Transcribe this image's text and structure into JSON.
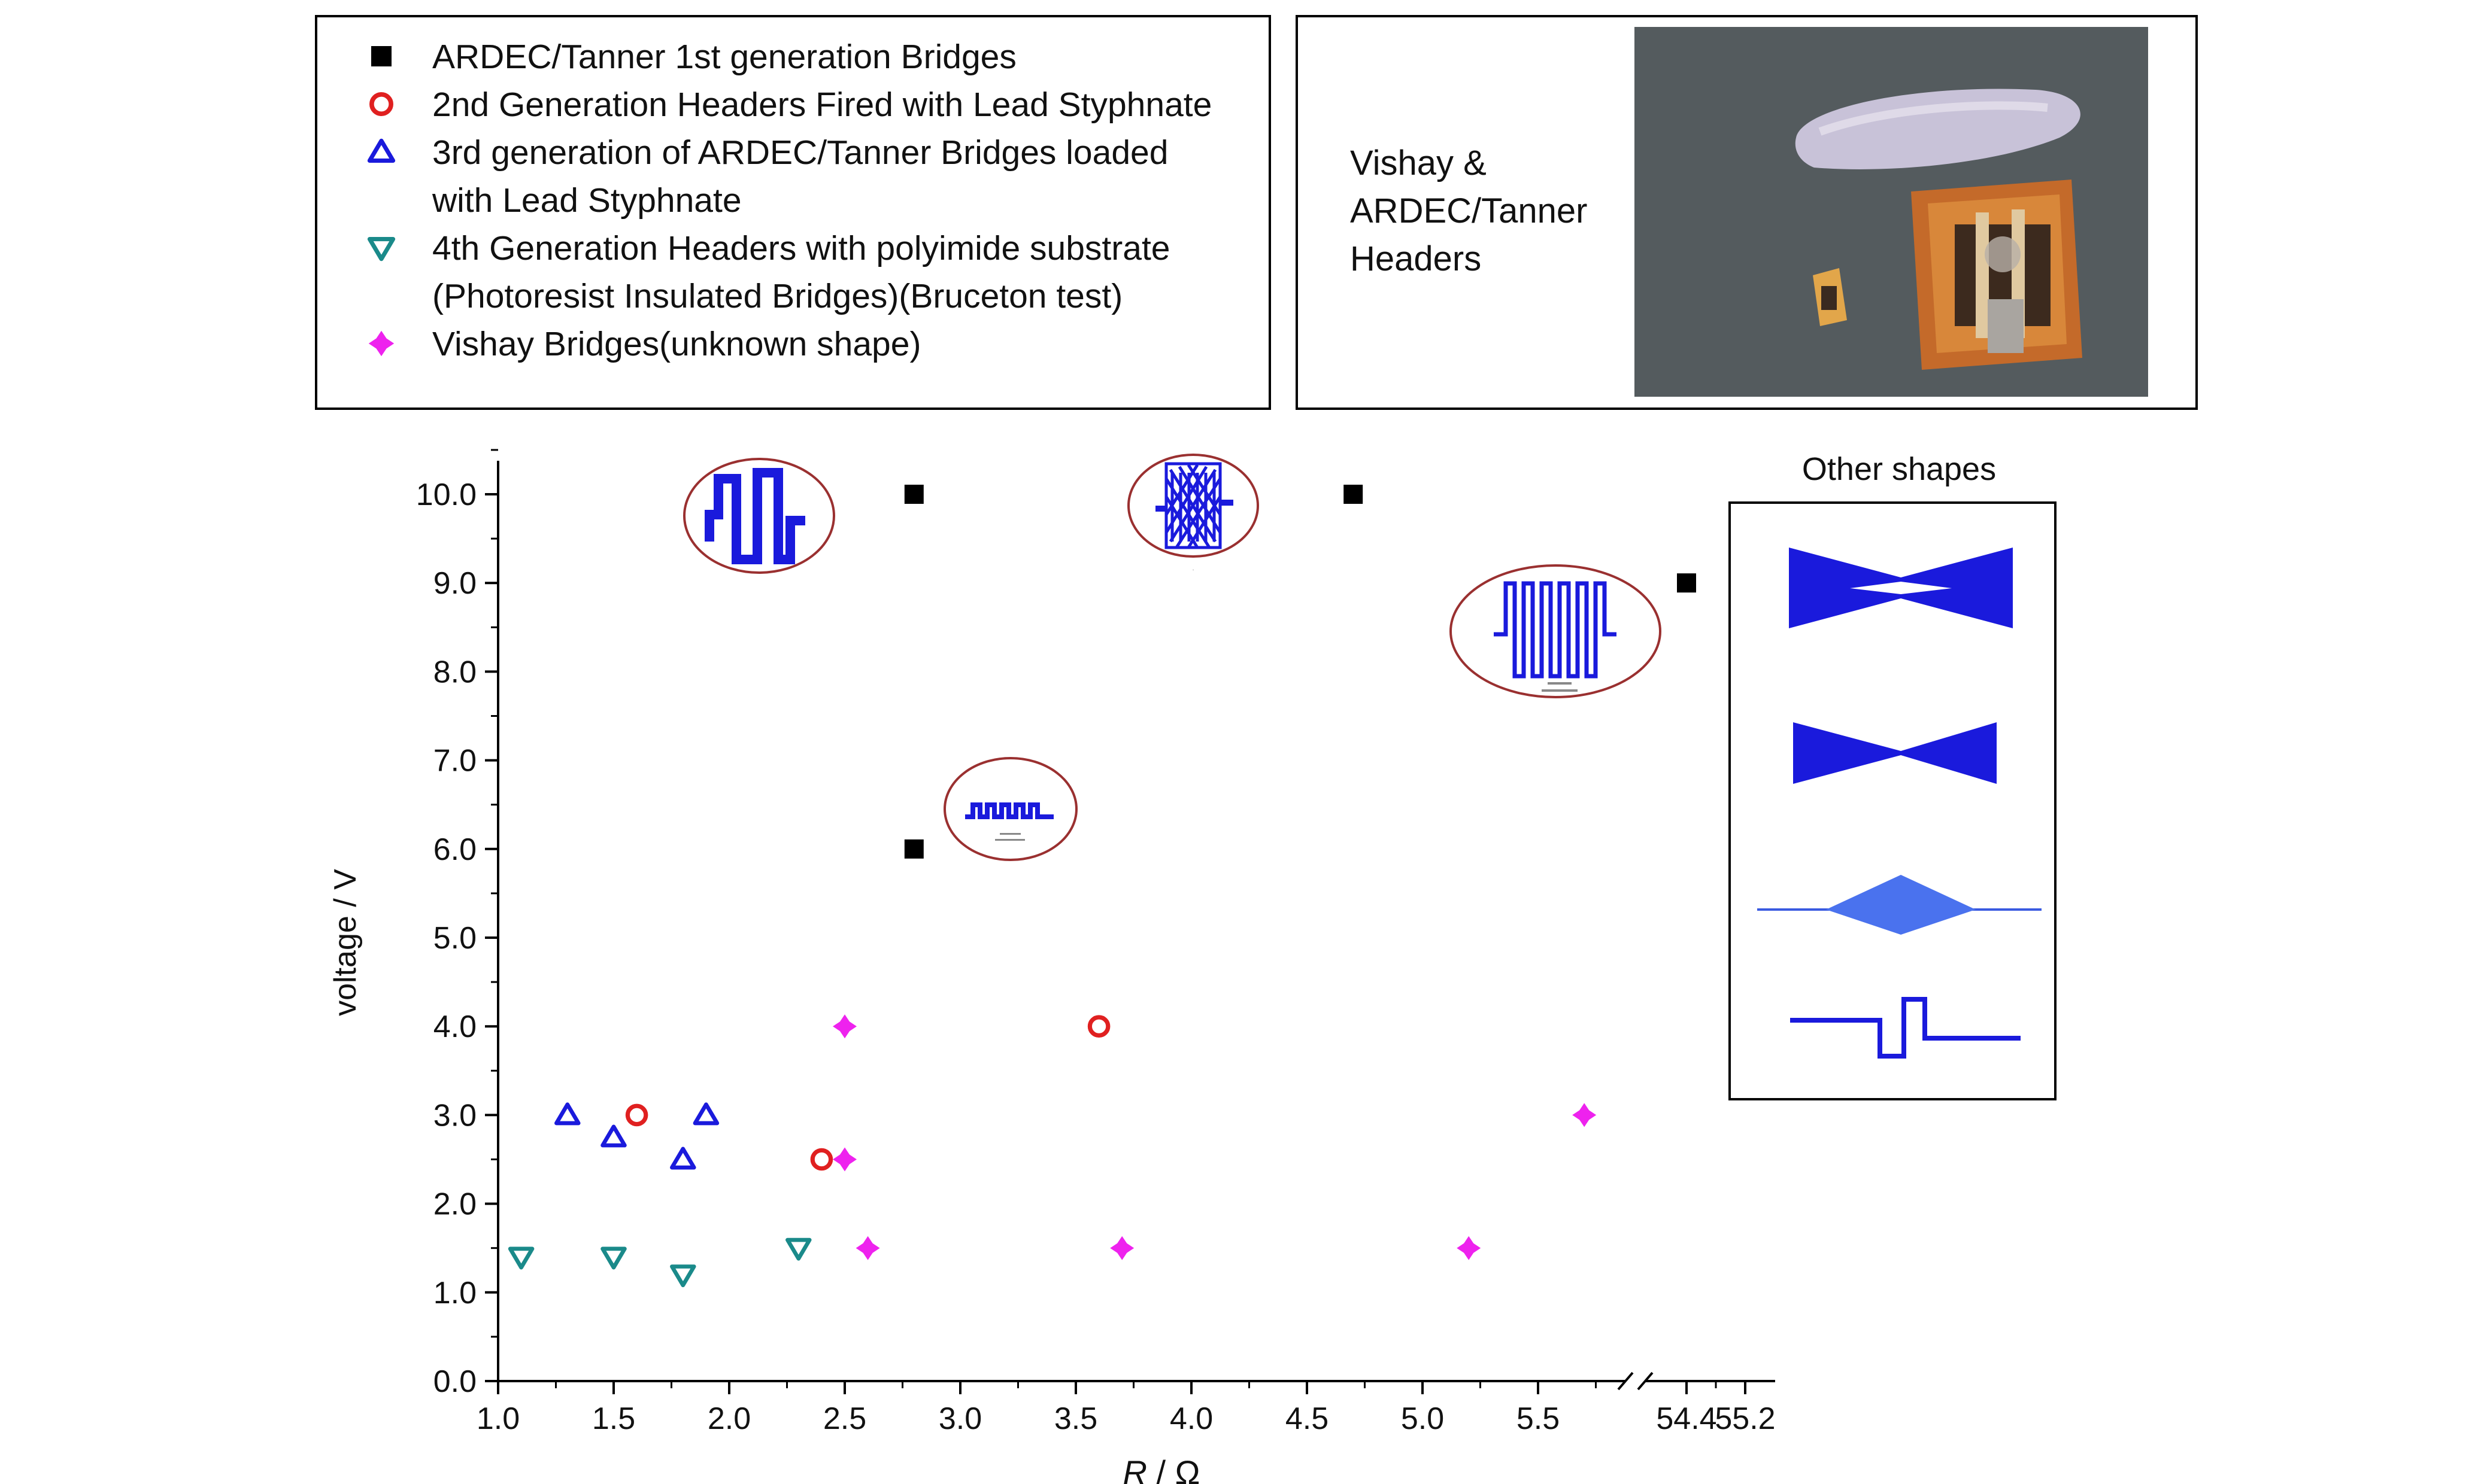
{
  "legend": {
    "entries": [
      {
        "marker": "square",
        "color": "#000000",
        "lines": [
          "ARDEC/Tanner 1st generation Bridges"
        ]
      },
      {
        "marker": "circle",
        "color": "#e02020",
        "lines": [
          "2nd Generation Headers Fired with Lead Styphnate"
        ]
      },
      {
        "marker": "triangle-up",
        "color": "#1a1adc",
        "lines": [
          "3rd generation of ARDEC/Tanner Bridges loaded",
          "with Lead Styphnate"
        ]
      },
      {
        "marker": "triangle-down",
        "color": "#1a8a8a",
        "lines": [
          "4th Generation Headers with polyimide substrate",
          "(Photoresist Insulated Bridges)(Bruceton test)"
        ]
      },
      {
        "marker": "star",
        "color": "#ee22ee",
        "lines": [
          "Vishay Bridges(unknown shape)"
        ]
      }
    ]
  },
  "photo_panel": {
    "caption_lines": [
      "Vishay &",
      "ARDEC/Tanner",
      "Headers"
    ]
  },
  "other_shapes": {
    "title": "Other shapes"
  },
  "chart_data": {
    "type": "scatter",
    "xlabel_italic": "R",
    "xlabel_unit": " / Ω",
    "ylabel": "voltage / V",
    "xlim": [
      1.0,
      5.8
    ],
    "x_break": {
      "after": 5.8,
      "resume_ticks": [
        54.4,
        55.2
      ]
    },
    "ylim": [
      0.0,
      10.6
    ],
    "x_ticks": [
      "1.0",
      "1.5",
      "2.0",
      "2.5",
      "3.0",
      "3.5",
      "4.0",
      "4.5",
      "5.0",
      "5.5"
    ],
    "x_break_ticks": [
      "54.4",
      "55.2"
    ],
    "y_ticks": [
      "0.0",
      "1.0",
      "2.0",
      "3.0",
      "4.0",
      "5.0",
      "6.0",
      "7.0",
      "8.0",
      "9.0",
      "10.0"
    ],
    "grid": false,
    "series": [
      {
        "marker": "square",
        "color": "#000000",
        "points": [
          {
            "x": 2.8,
            "y": 10.0
          },
          {
            "x": 4.7,
            "y": 10.0
          },
          {
            "x": 2.8,
            "y": 6.0
          },
          {
            "x": 54.4,
            "y": 9.0
          }
        ]
      },
      {
        "marker": "circle",
        "color": "#e02020",
        "points": [
          {
            "x": 1.6,
            "y": 3.0
          },
          {
            "x": 2.4,
            "y": 2.5
          },
          {
            "x": 3.6,
            "y": 4.0
          }
        ]
      },
      {
        "marker": "triangle-up",
        "color": "#1a1adc",
        "points": [
          {
            "x": 1.3,
            "y": 3.0
          },
          {
            "x": 1.5,
            "y": 2.75
          },
          {
            "x": 1.8,
            "y": 2.5
          },
          {
            "x": 1.9,
            "y": 3.0
          }
        ]
      },
      {
        "marker": "triangle-down",
        "color": "#1a8a8a",
        "points": [
          {
            "x": 1.1,
            "y": 1.4
          },
          {
            "x": 1.5,
            "y": 1.4
          },
          {
            "x": 1.8,
            "y": 1.2
          },
          {
            "x": 2.3,
            "y": 1.5
          }
        ]
      },
      {
        "marker": "star",
        "color": "#ee22ee",
        "points": [
          {
            "x": 2.5,
            "y": 4.0
          },
          {
            "x": 2.5,
            "y": 2.5
          },
          {
            "x": 2.6,
            "y": 1.5
          },
          {
            "x": 3.7,
            "y": 1.5
          },
          {
            "x": 5.2,
            "y": 1.5
          },
          {
            "x": 5.7,
            "y": 3.0
          }
        ]
      }
    ]
  }
}
